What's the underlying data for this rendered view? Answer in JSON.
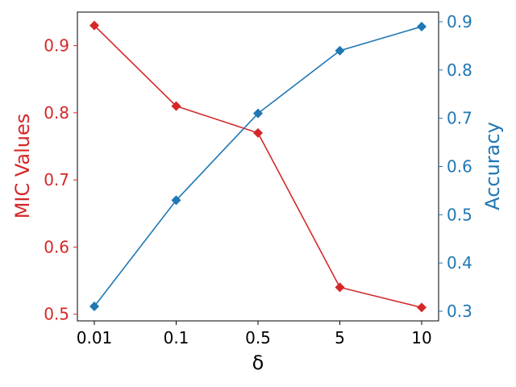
{
  "chart_data": {
    "type": "line",
    "categories": [
      "0.01",
      "0.1",
      "0.5",
      "5",
      "10"
    ],
    "xlabel": "δ",
    "ylabel_left": "MIC Values",
    "ylabel_right": "Accuracy",
    "ylim_left": [
      0.49,
      0.95
    ],
    "ylim_right": [
      0.28,
      0.92
    ],
    "yticks_left": [
      "0.5",
      "0.6",
      "0.7",
      "0.8",
      "0.9"
    ],
    "yticks_right": [
      "0.3",
      "0.4",
      "0.5",
      "0.6",
      "0.7",
      "0.8",
      "0.9"
    ],
    "grid": false,
    "marker": "diamond",
    "series": [
      {
        "axis": "left",
        "color": "#d62728",
        "values": [
          0.93,
          0.81,
          0.77,
          0.54,
          0.51
        ]
      },
      {
        "axis": "right",
        "color": "#1f77b4",
        "values": [
          0.31,
          0.53,
          0.71,
          0.84,
          0.89
        ]
      }
    ]
  }
}
